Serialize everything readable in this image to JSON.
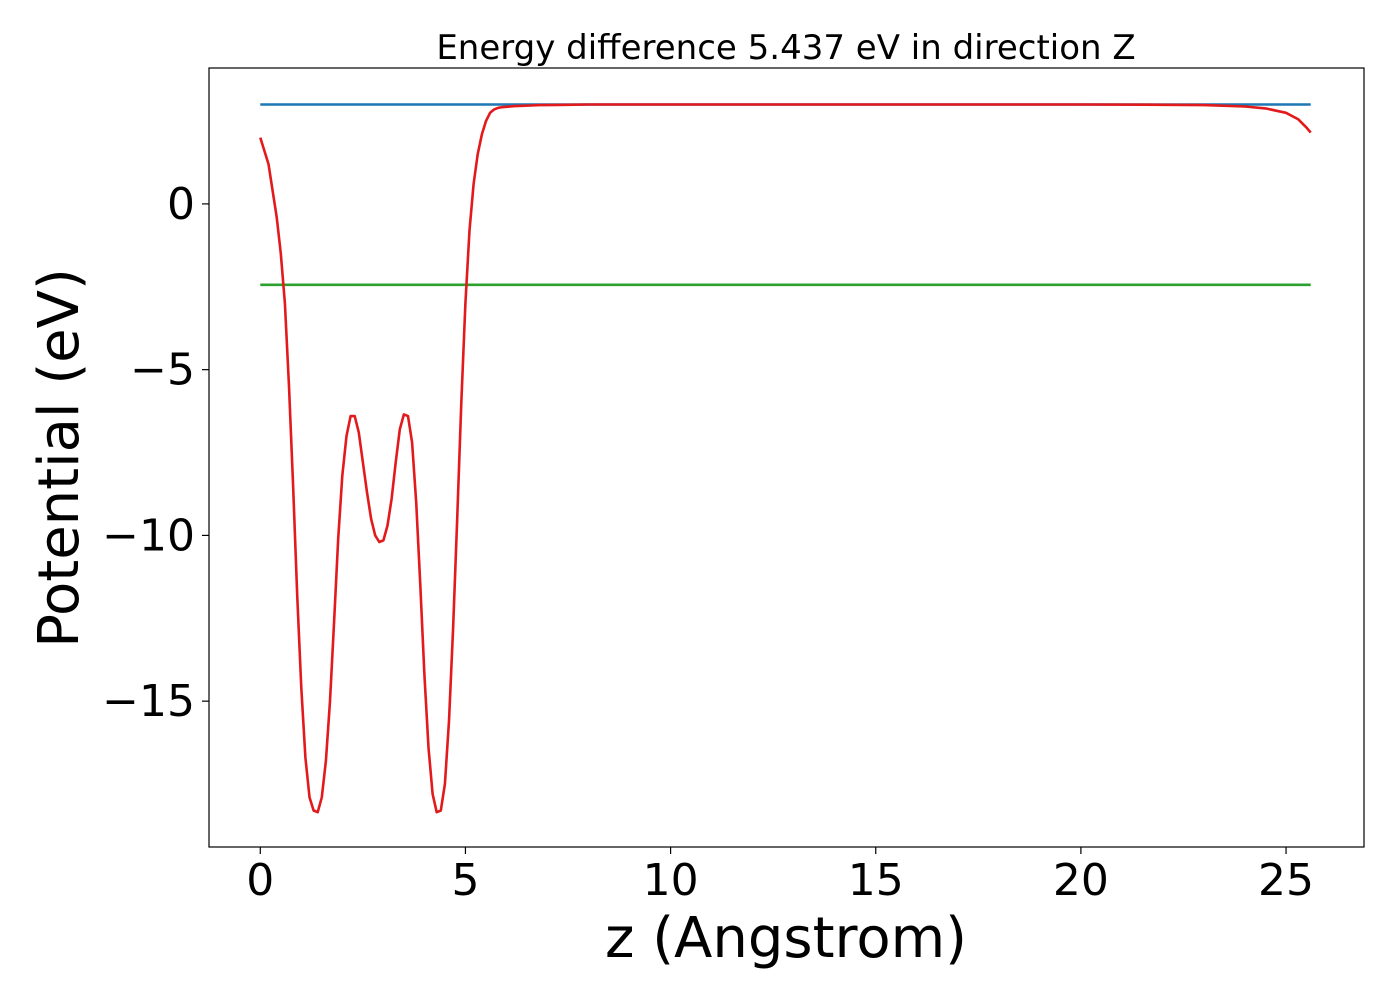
{
  "chart_data": {
    "type": "line",
    "title": "Energy difference 5.437 eV in direction Z",
    "xlabel": "z (Angstrom)",
    "ylabel": "Potential (eV)",
    "xlim": [
      -1.25,
      26.9
    ],
    "ylim": [
      -19.4,
      4.1
    ],
    "x_ticks": [
      0,
      5,
      10,
      15,
      20,
      25
    ],
    "x_tick_labels": [
      "0",
      "5",
      "10",
      "15",
      "20",
      "25"
    ],
    "y_ticks": [
      0,
      -5,
      -10,
      -15
    ],
    "y_tick_labels": [
      "0",
      "−5",
      "−10",
      "−15"
    ],
    "grid": false,
    "legend": "none",
    "series": [
      {
        "color": "#1f77b4",
        "x": [
          0,
          25.6
        ],
        "y": [
          3.0,
          3.0
        ]
      },
      {
        "color": "#2ca02c",
        "x": [
          0,
          25.6
        ],
        "y": [
          -2.44,
          -2.44
        ]
      },
      {
        "color": "#e31a1c",
        "x": [
          0,
          0.2,
          0.4,
          0.5,
          0.6,
          0.7,
          0.8,
          0.9,
          1.0,
          1.1,
          1.2,
          1.3,
          1.4,
          1.5,
          1.6,
          1.7,
          1.8,
          1.9,
          2.0,
          2.1,
          2.2,
          2.3,
          2.4,
          2.5,
          2.6,
          2.7,
          2.8,
          2.9,
          3.0,
          3.1,
          3.2,
          3.3,
          3.4,
          3.5,
          3.6,
          3.7,
          3.8,
          3.9,
          4.0,
          4.1,
          4.2,
          4.3,
          4.4,
          4.5,
          4.6,
          4.7,
          4.8,
          4.9,
          5.0,
          5.1,
          5.2,
          5.3,
          5.4,
          5.5,
          5.6,
          5.7,
          5.8,
          5.9,
          6.0,
          6.2,
          6.4,
          6.6,
          6.8,
          7.0,
          7.5,
          8.0,
          9.0,
          10,
          12,
          14,
          16,
          18,
          20,
          22,
          23,
          24,
          24.5,
          25,
          25.3,
          25.5,
          25.6
        ],
        "y": [
          2.0,
          1.2,
          -0.4,
          -1.5,
          -3.0,
          -5.5,
          -8.5,
          -11.8,
          -14.6,
          -16.7,
          -17.9,
          -18.3,
          -18.35,
          -17.9,
          -16.8,
          -15.0,
          -12.6,
          -10.1,
          -8.2,
          -7.0,
          -6.4,
          -6.4,
          -6.9,
          -7.8,
          -8.7,
          -9.5,
          -10.0,
          -10.2,
          -10.15,
          -9.7,
          -8.9,
          -7.8,
          -6.8,
          -6.35,
          -6.4,
          -7.2,
          -9.0,
          -11.5,
          -14.2,
          -16.4,
          -17.8,
          -18.35,
          -18.3,
          -17.5,
          -15.6,
          -12.8,
          -9.5,
          -6.0,
          -3.0,
          -0.8,
          0.6,
          1.5,
          2.1,
          2.5,
          2.75,
          2.85,
          2.9,
          2.92,
          2.93,
          2.95,
          2.96,
          2.97,
          2.98,
          2.98,
          2.99,
          3.0,
          3.0,
          3.0,
          3.0,
          3.0,
          3.0,
          3.0,
          3.0,
          2.99,
          2.98,
          2.94,
          2.88,
          2.75,
          2.55,
          2.3,
          2.15
        ]
      }
    ]
  }
}
